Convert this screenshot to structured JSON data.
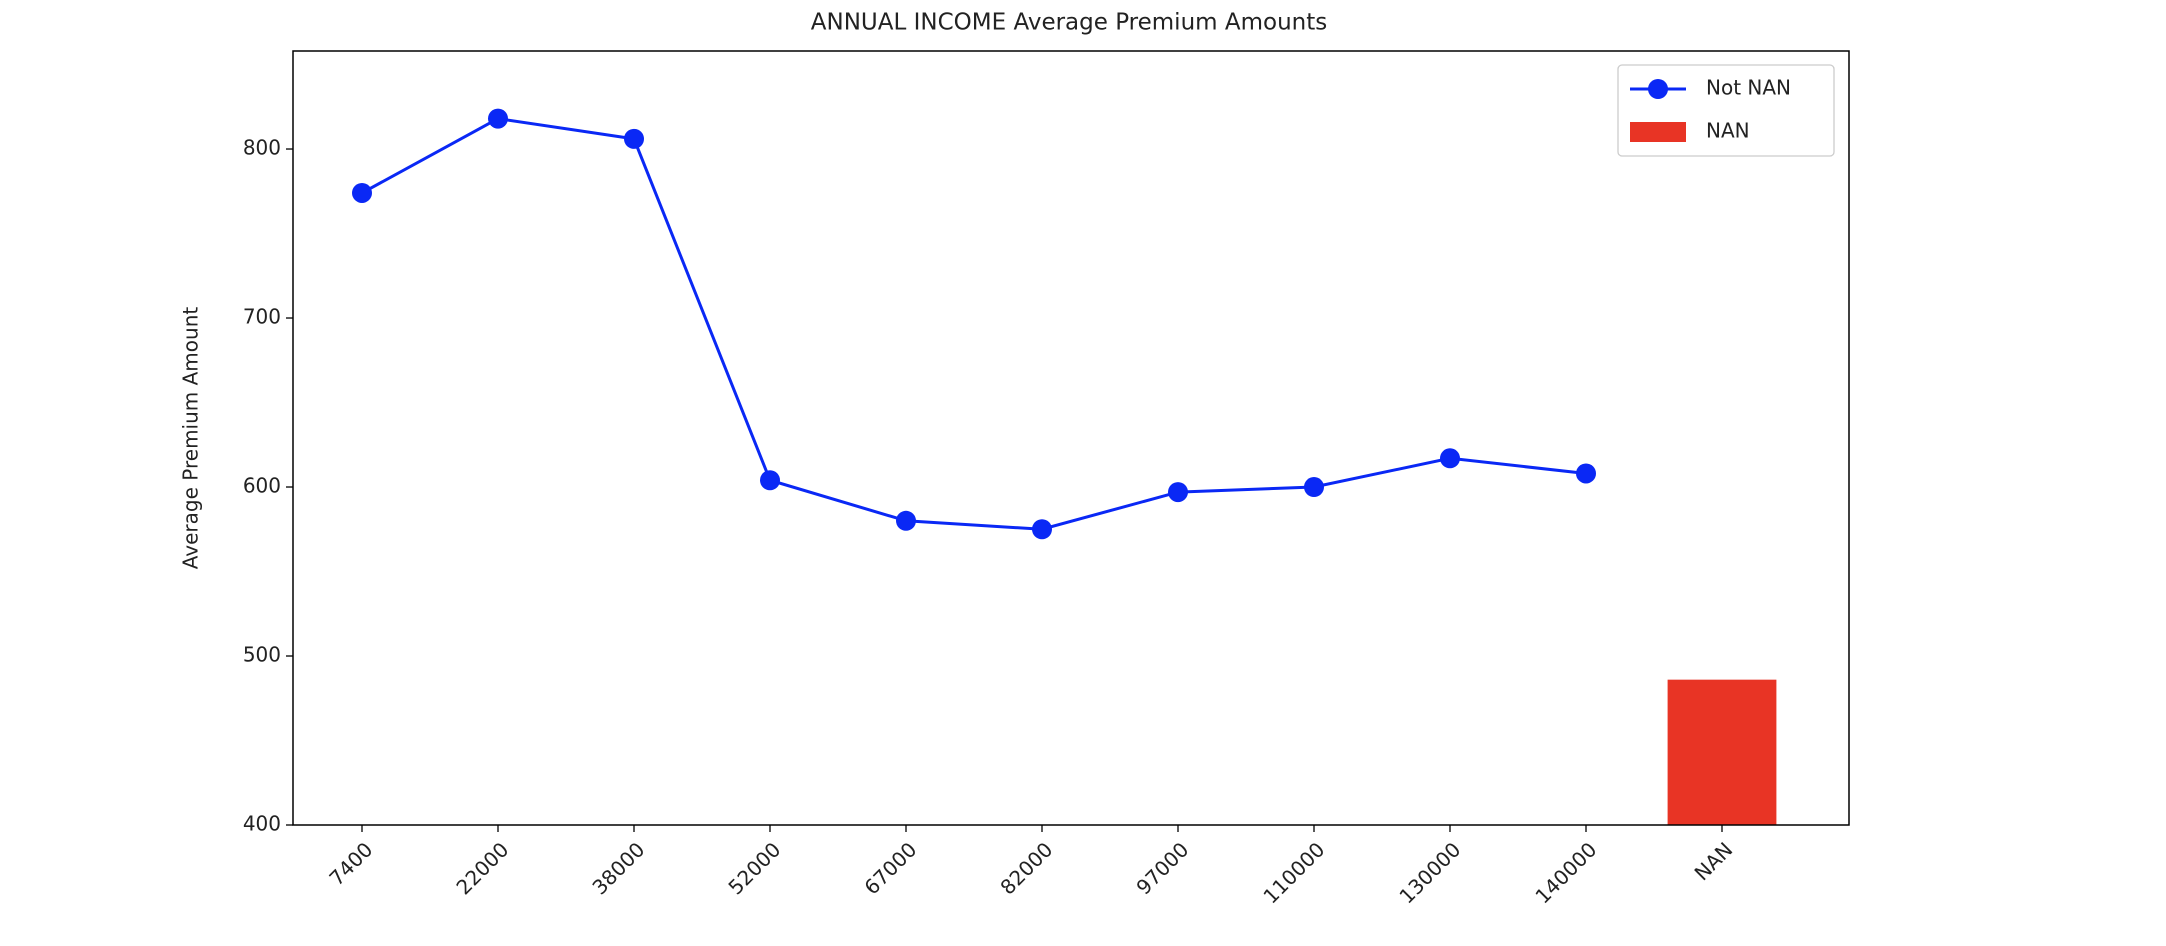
{
  "chart_data": {
    "type": "line",
    "title": "ANNUAL INCOME Average Premium Amounts",
    "y_label": "Average Premium Amount",
    "categories": [
      "7400",
      "22000",
      "38000",
      "52000",
      "67000",
      "82000",
      "97000",
      "110000",
      "130000",
      "140000",
      "NAN"
    ],
    "series": [
      {
        "name": "Not NAN",
        "type": "line",
        "color": "#0a28f5",
        "values": [
          774,
          818,
          806,
          604,
          580,
          575,
          597,
          600,
          617,
          608,
          null
        ]
      },
      {
        "name": "NAN",
        "type": "bar",
        "color": "#e83425",
        "values": [
          null,
          null,
          null,
          null,
          null,
          null,
          null,
          null,
          null,
          null,
          486
        ]
      }
    ],
    "ylim": [
      400,
      858
    ],
    "yticks": [
      400,
      500,
      600,
      700,
      800
    ],
    "grid": false,
    "legend": "upper right"
  }
}
